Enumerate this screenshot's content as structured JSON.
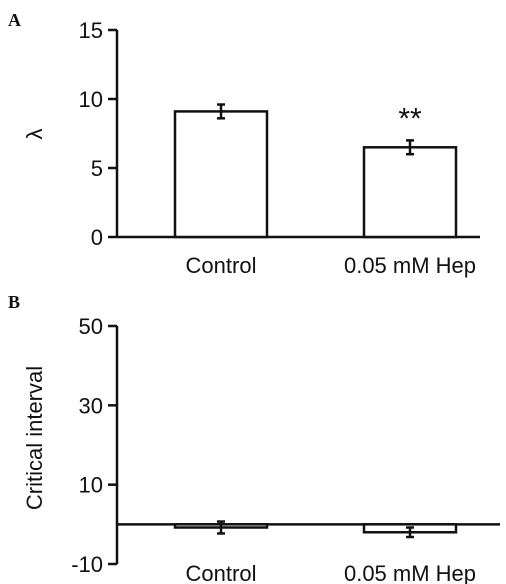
{
  "chart_data": [
    {
      "panel": "A",
      "type": "bar",
      "categories": [
        "Control",
        "0.05 mM Hep"
      ],
      "values": [
        9.1,
        6.5
      ],
      "errors": [
        0.5,
        0.5
      ],
      "annotations": [
        "",
        "**"
      ],
      "ylabel": "λ",
      "yticks": [
        0,
        5,
        10,
        15
      ],
      "ylim": [
        0,
        15
      ],
      "grid": false
    },
    {
      "panel": "B",
      "type": "bar",
      "categories": [
        "Control",
        "0.05 mM Hep"
      ],
      "values": [
        -0.8,
        -2.0
      ],
      "errors": [
        1.5,
        1.2
      ],
      "ylabel": "Critical interval",
      "yticks": [
        -10,
        10,
        30,
        50
      ],
      "ylim": [
        -10,
        50
      ],
      "grid": false
    }
  ]
}
